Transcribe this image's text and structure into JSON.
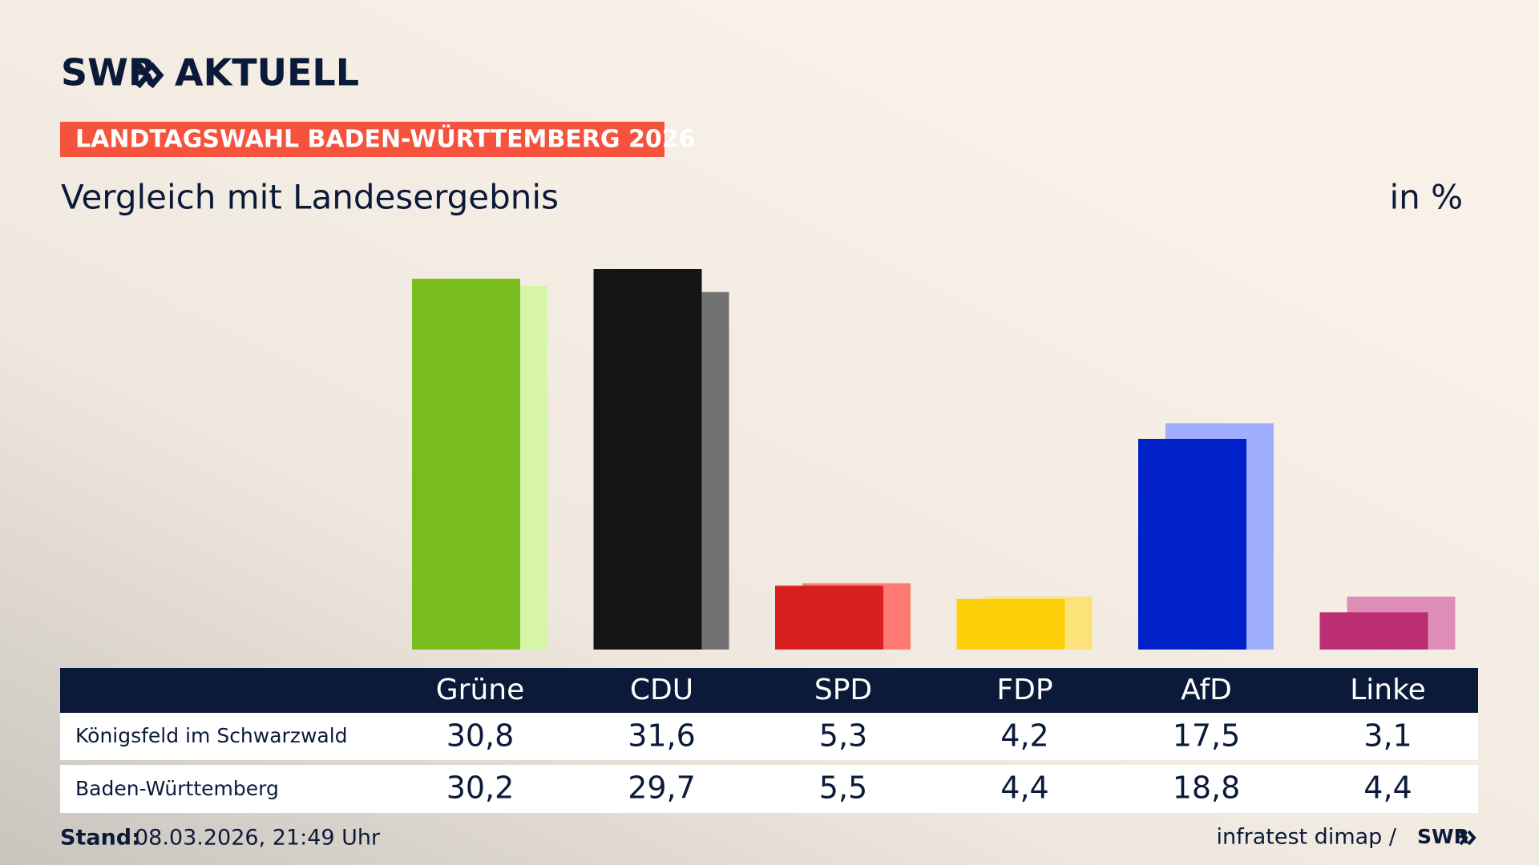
{
  "header": {
    "logo_left": "SWR",
    "logo_right": "AKTUELL",
    "banner": "LANDTAGSWAHL BADEN-WÜRTTEMBERG 2026"
  },
  "chart_data": {
    "type": "bar",
    "title": "Vergleich mit Landesergebnis",
    "unit": "in %",
    "categories": [
      "Grüne",
      "CDU",
      "SPD",
      "FDP",
      "AfD",
      "Linke"
    ],
    "series": [
      {
        "name": "Königsfeld im Schwarzwald",
        "colors": [
          "#78bc1e",
          "#141414",
          "#d7201e",
          "#fdd00a",
          "#0020c8",
          "#bb2f72"
        ],
        "values": [
          30.8,
          31.6,
          5.3,
          4.2,
          17.5,
          3.1
        ],
        "value_labels": [
          "30,8",
          "31,6",
          "5,3",
          "4,2",
          "17,5",
          "3,1"
        ]
      },
      {
        "name": "Baden-Württemberg",
        "colors": [
          "#d6f5a9",
          "#727272",
          "#ff7a72",
          "#fde27a",
          "#9faeff",
          "#df8cb8"
        ],
        "values": [
          30.2,
          29.7,
          5.5,
          4.4,
          18.8,
          4.4
        ],
        "value_labels": [
          "30,2",
          "29,7",
          "5,5",
          "4,4",
          "18,8",
          "4,4"
        ]
      }
    ]
  },
  "footer": {
    "stand_label": "Stand:",
    "stand_value": "08.03.2026, 21:49 Uhr",
    "source": "infratest dimap /",
    "logo": "SWR"
  }
}
